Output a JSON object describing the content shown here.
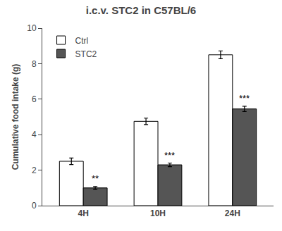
{
  "chart_data": {
    "type": "bar",
    "title": "i.c.v. STC2 in C57BL/6",
    "ylabel": "Cumulative food intake (g)",
    "categories": [
      "4H",
      "10H",
      "24H"
    ],
    "series": [
      {
        "name": "Ctrl",
        "color": "#FFFFFF",
        "values": [
          2.5,
          4.75,
          8.5
        ],
        "errors": [
          0.18,
          0.18,
          0.22
        ]
      },
      {
        "name": "STC2",
        "color": "#555555",
        "values": [
          1.0,
          2.3,
          5.45
        ],
        "errors": [
          0.08,
          0.1,
          0.15
        ],
        "annotations": [
          "**",
          "***",
          "***"
        ]
      }
    ],
    "ylim": [
      0,
      10
    ],
    "yticks": [
      0,
      2,
      4,
      6,
      8,
      10
    ],
    "grid": false,
    "legend": "upper left"
  }
}
